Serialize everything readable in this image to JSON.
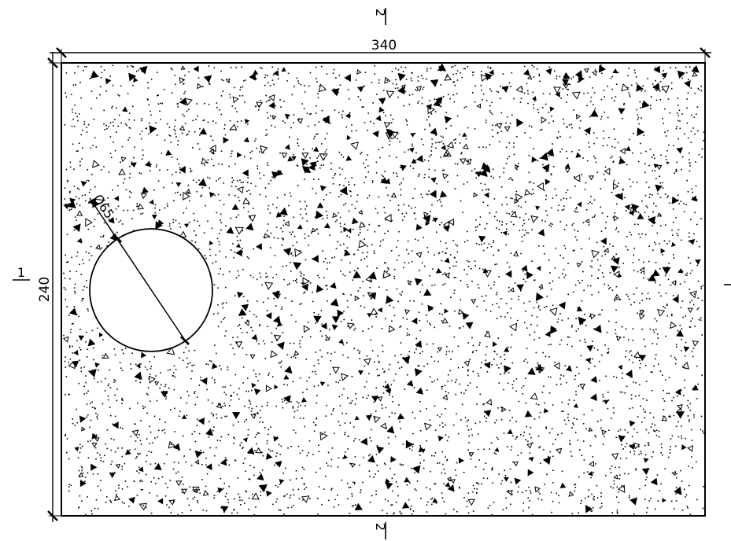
{
  "drawing": {
    "type": "concrete-section",
    "dimensions": {
      "width_label": "340",
      "height_label": "240",
      "hole_label": "Ø65"
    },
    "section_markers": {
      "top": "2",
      "bottom": "2",
      "left": "1"
    },
    "hatch": "concrete",
    "colors": {
      "line": "#000000",
      "background": "#ffffff"
    }
  }
}
